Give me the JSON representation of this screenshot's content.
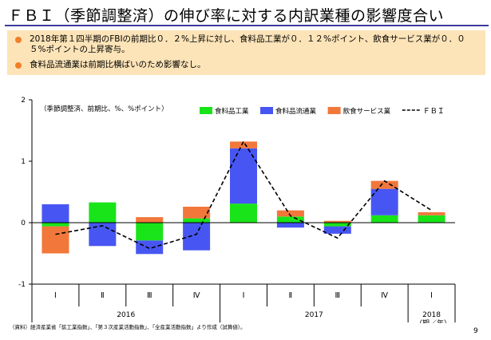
{
  "slide": {
    "title": "ＦＢＩ（季節調整済）の伸び率に対する内訳業種の影響度合い",
    "bullets": [
      "2018年第１四半期のFBIの前期比０．２%上昇に対し、食料品工業が０．１２%ポイント、飲食サービス業が０．０５%ポイントの上昇寄与。",
      "食料品流通業は前期比横ばいのため影響なし。"
    ],
    "source": "（資料）経済産業省「鉱工業指数」、「第３次産業活動指数」、「全産業活動指数」より作成（試算値）。",
    "page_number": "9"
  },
  "colors": {
    "food_industry": "#19e419",
    "food_distribution": "#4756f2",
    "food_service": "#f2773a",
    "fbi_line": "#000000",
    "bullet_bg": "#fde4b8",
    "bullet_dot": "#f07f2a",
    "title_rule": "#3b3b9a"
  },
  "chart_data": {
    "type": "bar",
    "stacked": true,
    "ylabel": "（季節調整済、前期比、%、%ポイント）",
    "ylim": [
      -1,
      2
    ],
    "yticks": [
      -1,
      0,
      1,
      2
    ],
    "categories": [
      "Ⅰ",
      "Ⅱ",
      "Ⅲ",
      "Ⅳ",
      "Ⅰ",
      "Ⅱ",
      "Ⅲ",
      "Ⅳ",
      "Ⅰ"
    ],
    "year_labels": [
      {
        "label": "2016",
        "from": 0,
        "to": 3
      },
      {
        "label": "2017",
        "from": 4,
        "to": 7
      },
      {
        "label": "2018",
        "from": 8,
        "to": 8
      }
    ],
    "period_unit": "（期／年）",
    "series": [
      {
        "name": "食料品工業",
        "color_key": "food_industry",
        "values": [
          -0.06,
          0.33,
          -0.29,
          0.07,
          0.31,
          0.1,
          -0.06,
          0.12,
          0.12
        ]
      },
      {
        "name": "食料品流通業",
        "color_key": "food_distribution",
        "values": [
          0.3,
          -0.38,
          -0.22,
          -0.45,
          0.9,
          -0.08,
          -0.12,
          0.43,
          0.0
        ]
      },
      {
        "name": "飲食サービス業",
        "color_key": "food_service",
        "values": [
          -0.44,
          0.0,
          0.09,
          0.19,
          0.11,
          0.1,
          0.03,
          0.13,
          0.05
        ]
      }
    ],
    "line": {
      "name": "ＦＢＩ",
      "style": "dashed",
      "values": [
        -0.19,
        -0.05,
        -0.42,
        -0.19,
        1.32,
        0.11,
        -0.25,
        0.68,
        0.2
      ]
    },
    "legend_position": "top-right",
    "grid": false
  }
}
